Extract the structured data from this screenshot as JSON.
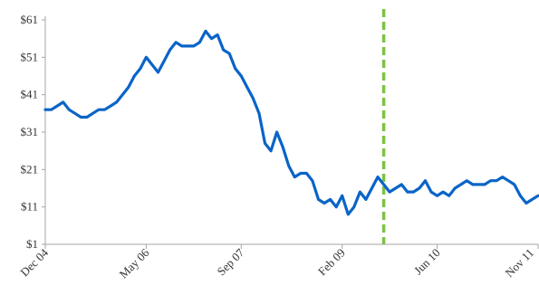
{
  "chart_data": {
    "type": "line",
    "title": "",
    "xlabel": "",
    "ylabel": "",
    "ylim": [
      1,
      61
    ],
    "xlim": [
      "2004-12",
      "2011-11"
    ],
    "grid": false,
    "legend": "none",
    "y_ticks": [
      {
        "value": 61,
        "label": "$61"
      },
      {
        "value": 51,
        "label": "$51"
      },
      {
        "value": 41,
        "label": "$41"
      },
      {
        "value": 31,
        "label": "$31"
      },
      {
        "value": 21,
        "label": "$21"
      },
      {
        "value": 11,
        "label": "$11"
      },
      {
        "value": 1,
        "label": "$1"
      }
    ],
    "x_ticks": [
      {
        "value": "2004-12",
        "label": "Dec 04"
      },
      {
        "value": "2006-05",
        "label": "May 06"
      },
      {
        "value": "2007-09",
        "label": "Sep 07"
      },
      {
        "value": "2009-02",
        "label": "Feb 09"
      },
      {
        "value": "2010-06",
        "label": "Jun 10"
      },
      {
        "value": "2011-11",
        "label": "Nov 11"
      }
    ],
    "marker_line": {
      "x": "2009-09",
      "color": "#7CC242",
      "style": "dashed"
    },
    "series": [
      {
        "color": "#0A64C8",
        "points": [
          [
            "2004-12",
            37
          ],
          [
            "2005-01",
            37
          ],
          [
            "2005-02",
            38
          ],
          [
            "2005-03",
            39
          ],
          [
            "2005-04",
            37
          ],
          [
            "2005-05",
            36
          ],
          [
            "2005-06",
            35
          ],
          [
            "2005-07",
            35
          ],
          [
            "2005-08",
            36
          ],
          [
            "2005-09",
            37
          ],
          [
            "2005-10",
            37
          ],
          [
            "2005-11",
            38
          ],
          [
            "2005-12",
            39
          ],
          [
            "2006-01",
            41
          ],
          [
            "2006-02",
            43
          ],
          [
            "2006-03",
            46
          ],
          [
            "2006-04",
            48
          ],
          [
            "2006-05",
            51
          ],
          [
            "2006-06",
            49
          ],
          [
            "2006-07",
            47
          ],
          [
            "2006-08",
            50
          ],
          [
            "2006-09",
            53
          ],
          [
            "2006-10",
            55
          ],
          [
            "2006-11",
            54
          ],
          [
            "2006-12",
            54
          ],
          [
            "2007-01",
            54
          ],
          [
            "2007-02",
            55
          ],
          [
            "2007-03",
            58
          ],
          [
            "2007-04",
            56
          ],
          [
            "2007-05",
            57
          ],
          [
            "2007-06",
            53
          ],
          [
            "2007-07",
            52
          ],
          [
            "2007-08",
            48
          ],
          [
            "2007-09",
            46
          ],
          [
            "2007-10",
            43
          ],
          [
            "2007-11",
            40
          ],
          [
            "2007-12",
            36
          ],
          [
            "2008-01",
            28
          ],
          [
            "2008-02",
            26
          ],
          [
            "2008-03",
            31
          ],
          [
            "2008-04",
            27
          ],
          [
            "2008-05",
            22
          ],
          [
            "2008-06",
            19
          ],
          [
            "2008-07",
            20
          ],
          [
            "2008-08",
            20
          ],
          [
            "2008-09",
            18
          ],
          [
            "2008-10",
            13
          ],
          [
            "2008-11",
            12
          ],
          [
            "2008-12",
            13
          ],
          [
            "2009-01",
            11
          ],
          [
            "2009-02",
            14
          ],
          [
            "2009-03",
            9
          ],
          [
            "2009-04",
            11
          ],
          [
            "2009-05",
            15
          ],
          [
            "2009-06",
            13
          ],
          [
            "2009-07",
            16
          ],
          [
            "2009-08",
            19
          ],
          [
            "2009-09",
            17
          ],
          [
            "2009-10",
            15
          ],
          [
            "2009-11",
            16
          ],
          [
            "2009-12",
            17
          ],
          [
            "2010-01",
            15
          ],
          [
            "2010-02",
            15
          ],
          [
            "2010-03",
            16
          ],
          [
            "2010-04",
            18
          ],
          [
            "2010-05",
            15
          ],
          [
            "2010-06",
            14
          ],
          [
            "2010-07",
            15
          ],
          [
            "2010-08",
            14
          ],
          [
            "2010-09",
            16
          ],
          [
            "2010-10",
            17
          ],
          [
            "2010-11",
            18
          ],
          [
            "2010-12",
            17
          ],
          [
            "2011-01",
            17
          ],
          [
            "2011-02",
            17
          ],
          [
            "2011-03",
            18
          ],
          [
            "2011-04",
            18
          ],
          [
            "2011-05",
            19
          ],
          [
            "2011-06",
            18
          ],
          [
            "2011-07",
            17
          ],
          [
            "2011-08",
            14
          ],
          [
            "2011-09",
            12
          ],
          [
            "2011-10",
            13
          ],
          [
            "2011-11",
            14
          ]
        ]
      }
    ]
  }
}
